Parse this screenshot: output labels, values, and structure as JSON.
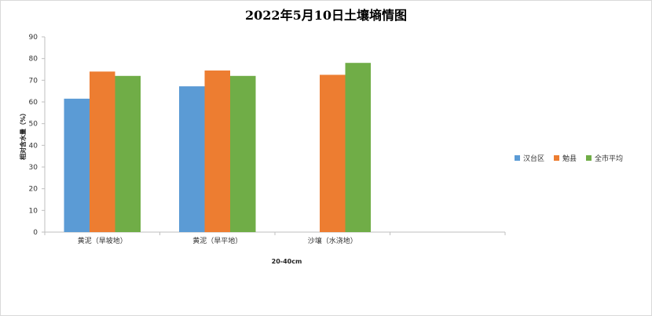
{
  "chart_data": {
    "type": "bar",
    "title": "2022年5月10日土壤墒情图",
    "xlabel": "20-40cm",
    "ylabel": "相对含水量（%）",
    "ylim": [
      0,
      90
    ],
    "yticks": [
      0,
      10,
      20,
      30,
      40,
      50,
      60,
      70,
      80,
      90
    ],
    "categories": [
      "黄泥（旱坡地）",
      "黄泥（旱平地）",
      "沙壤（水浇地）",
      ""
    ],
    "series": [
      {
        "name": "汉台区",
        "color": "#5b9bd5",
        "values": [
          61.5,
          67.2,
          null,
          null
        ]
      },
      {
        "name": "勉县",
        "color": "#ed7d31",
        "values": [
          74.0,
          74.5,
          72.5,
          null
        ]
      },
      {
        "name": "全市平均",
        "color": "#70ad47",
        "values": [
          72.0,
          72.0,
          78.0,
          null
        ]
      }
    ],
    "legend_position": "right",
    "grid": false
  }
}
